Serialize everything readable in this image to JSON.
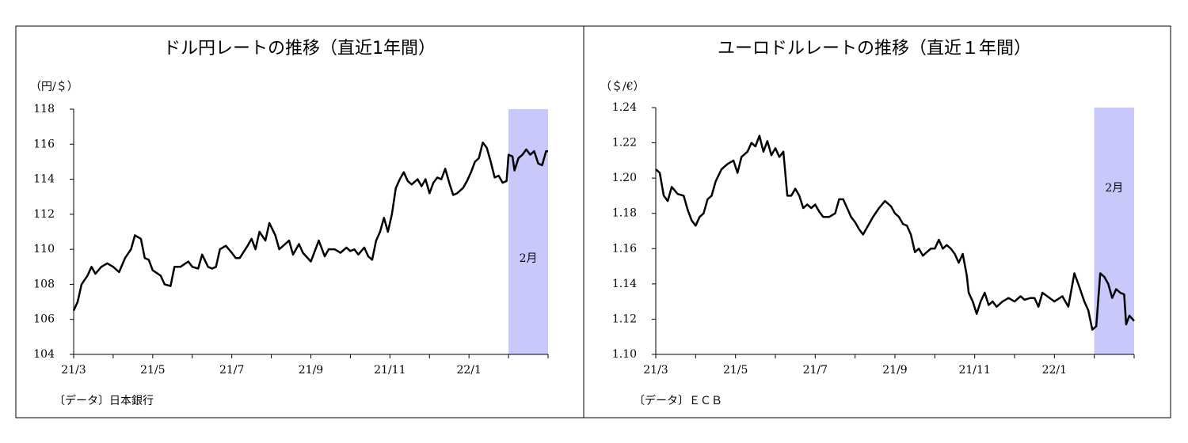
{
  "chart_data": [
    {
      "type": "line",
      "title": "ドル円レートの推移（直近1年間）",
      "y_label": "（円/＄）",
      "source": "〔データ〕日本銀行",
      "xlim": [
        0,
        12
      ],
      "xticks": [
        {
          "value": 0,
          "label": "21/3"
        },
        {
          "value": 2,
          "label": "21/5"
        },
        {
          "value": 4,
          "label": "21/7"
        },
        {
          "value": 6,
          "label": "21/9"
        },
        {
          "value": 8,
          "label": "21/11"
        },
        {
          "value": 10,
          "label": "22/1"
        }
      ],
      "xminor_ticks": [
        1,
        3,
        5,
        7,
        9,
        11,
        12
      ],
      "ylim": [
        104,
        118
      ],
      "yticks": [
        104,
        106,
        108,
        110,
        112,
        114,
        116,
        118
      ],
      "highlight": {
        "x": [
          11,
          12
        ],
        "label": "2月",
        "color": "#c8c8fa"
      },
      "series": [
        {
          "color": "#000000",
          "x": [
            0,
            0.1,
            0.2,
            0.35,
            0.45,
            0.55,
            0.7,
            0.85,
            1.0,
            1.15,
            1.3,
            1.45,
            1.55,
            1.7,
            1.8,
            1.9,
            2.0,
            2.2,
            2.3,
            2.45,
            2.55,
            2.7,
            2.9,
            3.0,
            3.15,
            3.25,
            3.4,
            3.5,
            3.6,
            3.7,
            3.85,
            4.0,
            4.1,
            4.2,
            4.4,
            4.5,
            4.6,
            4.7,
            4.85,
            4.95,
            5.1,
            5.2,
            5.3,
            5.45,
            5.55,
            5.7,
            5.8,
            6.0,
            6.1,
            6.2,
            6.35,
            6.45,
            6.6,
            6.75,
            6.9,
            7.0,
            7.1,
            7.2,
            7.35,
            7.45,
            7.55,
            7.65,
            7.75,
            7.85,
            7.95,
            8.05,
            8.15,
            8.25,
            8.35,
            8.45,
            8.55,
            8.7,
            8.8,
            8.9,
            9.0,
            9.1,
            9.2,
            9.3,
            9.4,
            9.5,
            9.6,
            9.7,
            9.85,
            9.95,
            10.05,
            10.15,
            10.25,
            10.35,
            10.45,
            10.55,
            10.65,
            10.75,
            10.85,
            10.95,
            11.0,
            11.1,
            11.15,
            11.25,
            11.35,
            11.45,
            11.55,
            11.65,
            11.75,
            11.85,
            11.95,
            12
          ],
          "values": [
            106.5,
            107,
            108,
            108.5,
            109,
            108.6,
            109,
            109.2,
            109,
            108.7,
            109.5,
            110,
            110.8,
            110.6,
            109.5,
            109.4,
            108.8,
            108.5,
            108,
            107.9,
            109,
            109,
            109.3,
            109,
            108.9,
            109.7,
            109,
            108.9,
            109,
            110,
            110.2,
            109.8,
            109.5,
            109.5,
            110.2,
            110.6,
            110,
            111,
            110.5,
            111.5,
            110.8,
            110,
            110.2,
            110.5,
            109.7,
            110.3,
            109.8,
            109.3,
            109.9,
            110.5,
            109.6,
            110,
            110,
            109.8,
            110.1,
            109.9,
            110,
            109.7,
            110.1,
            109.6,
            109.4,
            110.5,
            111,
            111.8,
            111,
            112,
            113.5,
            114,
            114.4,
            113.9,
            113.7,
            114,
            113.6,
            114,
            113.2,
            113.8,
            114.1,
            114,
            114.6,
            113.8,
            113.1,
            113.2,
            113.5,
            113.9,
            114.4,
            115,
            115.2,
            116.1,
            115.8,
            115,
            114.1,
            114.2,
            113.8,
            113.9,
            115.4,
            115.3,
            114.5,
            115.2,
            115.4,
            115.7,
            115.4,
            115.6,
            114.9,
            114.8,
            115.6,
            115.6
          ]
        }
      ]
    },
    {
      "type": "line",
      "title": "ユーロドルレートの推移（直近１年間）",
      "y_label": "（＄/€）",
      "source": "〔データ〕ＥＣＢ",
      "xlim": [
        0,
        12
      ],
      "xticks": [
        {
          "value": 0,
          "label": "21/3"
        },
        {
          "value": 2,
          "label": "21/5"
        },
        {
          "value": 4,
          "label": "21/7"
        },
        {
          "value": 6,
          "label": "21/9"
        },
        {
          "value": 8,
          "label": "21/11"
        },
        {
          "value": 10,
          "label": "22/1"
        }
      ],
      "xminor_ticks": [
        1,
        3,
        5,
        7,
        9,
        11,
        12
      ],
      "ylim": [
        1.1,
        1.24
      ],
      "yticks": [
        {
          "value": 1.1,
          "label": "1.10"
        },
        {
          "value": 1.12,
          "label": "1.12"
        },
        {
          "value": 1.14,
          "label": "1.14"
        },
        {
          "value": 1.16,
          "label": "1.16"
        },
        {
          "value": 1.18,
          "label": "1.18"
        },
        {
          "value": 1.2,
          "label": "1.20"
        },
        {
          "value": 1.22,
          "label": "1.22"
        },
        {
          "value": 1.24,
          "label": "1.24"
        }
      ],
      "highlight": {
        "x": [
          11,
          12
        ],
        "label": "2月",
        "color": "#c8c8fa"
      },
      "series": [
        {
          "color": "#000000",
          "x": [
            0,
            0.1,
            0.2,
            0.3,
            0.4,
            0.55,
            0.7,
            0.8,
            0.9,
            1.0,
            1.1,
            1.2,
            1.3,
            1.4,
            1.5,
            1.65,
            1.8,
            1.95,
            2.05,
            2.15,
            2.3,
            2.4,
            2.5,
            2.6,
            2.7,
            2.8,
            2.9,
            3.0,
            3.1,
            3.2,
            3.3,
            3.4,
            3.5,
            3.6,
            3.7,
            3.8,
            3.9,
            4.0,
            4.1,
            4.2,
            4.35,
            4.5,
            4.6,
            4.7,
            4.8,
            4.9,
            5.0,
            5.1,
            5.2,
            5.3,
            5.45,
            5.6,
            5.75,
            5.9,
            6.0,
            6.1,
            6.2,
            6.3,
            6.4,
            6.5,
            6.6,
            6.7,
            6.8,
            6.9,
            7.0,
            7.1,
            7.2,
            7.3,
            7.4,
            7.5,
            7.6,
            7.7,
            7.8,
            7.85,
            7.95,
            8.05,
            8.15,
            8.25,
            8.35,
            8.45,
            8.55,
            8.7,
            8.85,
            9.0,
            9.15,
            9.25,
            9.4,
            9.5,
            9.6,
            9.7,
            10.0,
            10.2,
            10.35,
            10.5,
            10.6,
            10.75,
            10.85,
            10.95,
            11.05,
            11.15,
            11.25,
            11.35,
            11.45,
            11.55,
            11.65,
            11.75,
            11.8,
            11.88,
            12
          ],
          "values": [
            1.205,
            1.203,
            1.19,
            1.187,
            1.195,
            1.191,
            1.19,
            1.182,
            1.176,
            1.173,
            1.178,
            1.18,
            1.188,
            1.19,
            1.198,
            1.205,
            1.208,
            1.21,
            1.203,
            1.212,
            1.215,
            1.22,
            1.218,
            1.224,
            1.215,
            1.221,
            1.213,
            1.217,
            1.212,
            1.215,
            1.19,
            1.19,
            1.194,
            1.19,
            1.183,
            1.185,
            1.183,
            1.185,
            1.181,
            1.178,
            1.178,
            1.18,
            1.188,
            1.188,
            1.183,
            1.178,
            1.175,
            1.171,
            1.168,
            1.172,
            1.178,
            1.183,
            1.187,
            1.184,
            1.18,
            1.178,
            1.174,
            1.173,
            1.168,
            1.158,
            1.16,
            1.156,
            1.158,
            1.16,
            1.16,
            1.165,
            1.16,
            1.162,
            1.16,
            1.157,
            1.152,
            1.157,
            1.145,
            1.135,
            1.13,
            1.123,
            1.13,
            1.135,
            1.128,
            1.13,
            1.127,
            1.13,
            1.132,
            1.13,
            1.133,
            1.131,
            1.132,
            1.132,
            1.127,
            1.135,
            1.13,
            1.133,
            1.127,
            1.146,
            1.14,
            1.13,
            1.125,
            1.114,
            1.116,
            1.146,
            1.144,
            1.14,
            1.132,
            1.137,
            1.135,
            1.134,
            1.117,
            1.122,
            1.119
          ]
        }
      ]
    }
  ]
}
